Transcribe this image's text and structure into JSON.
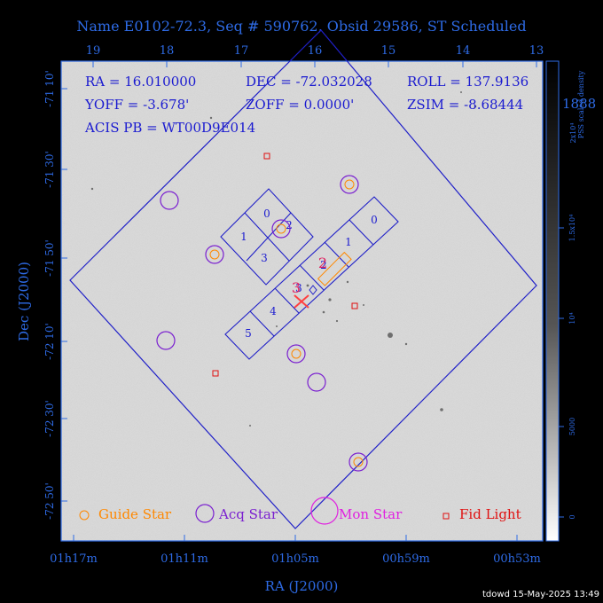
{
  "title": "Name E0102-72.3, Seq # 590762, Obsid 29586, ST Scheduled",
  "top_ticks": [
    "19",
    "18",
    "17",
    "16",
    "15",
    "14",
    "13"
  ],
  "left_ticks": [
    "-71 10'",
    "-71 30'",
    "-71 50'",
    "-72 10'",
    "-72 30'",
    "-72 50'"
  ],
  "bottom_ticks": [
    "01h17m",
    "01h11m",
    "01h05m",
    "00h59m",
    "00h53m"
  ],
  "x_axis_label": "RA (J2000)",
  "y_axis_label": "Dec (J2000)",
  "colorbar": {
    "title_line1": "PSS scaled density",
    "title_line2": "2x10⁴",
    "ticks": [
      "1.5x10⁴",
      "10⁴",
      "5000",
      "0"
    ],
    "overflow_label": "1888"
  },
  "info": {
    "ra": "RA = 16.010000",
    "dec": "DEC = -72.032028",
    "roll": "ROLL = 137.9136",
    "yoff": "YOFF = -3.678'",
    "zoff": "ZOFF = 0.0000'",
    "zsim": "ZSIM = -8.68444",
    "acis": "ACIS PB = WT00D9E014"
  },
  "chip_labels": {
    "i0": "0",
    "i1": "1",
    "i2": "2",
    "i3": "3",
    "s0": "0",
    "s1": "1",
    "s2": "2",
    "s3": "3",
    "s4": "4",
    "s5": "5"
  },
  "legend": {
    "guide": "Guide Star",
    "acq": "Acq Star",
    "mon": "Mon Star",
    "fid": "Fid Light"
  },
  "footer": "tdowd 15-May-2025 13:49",
  "colors": {
    "axes_blue": "#2e6be6",
    "fov_blue": "#2020c8",
    "guide_orange": "#ff8800",
    "acq_purple": "#7a1fd0",
    "mon_magenta": "#e020e0",
    "fid_red": "#e01010",
    "target_red": "#ff4040",
    "sky_gray": "#d9d9d9"
  }
}
